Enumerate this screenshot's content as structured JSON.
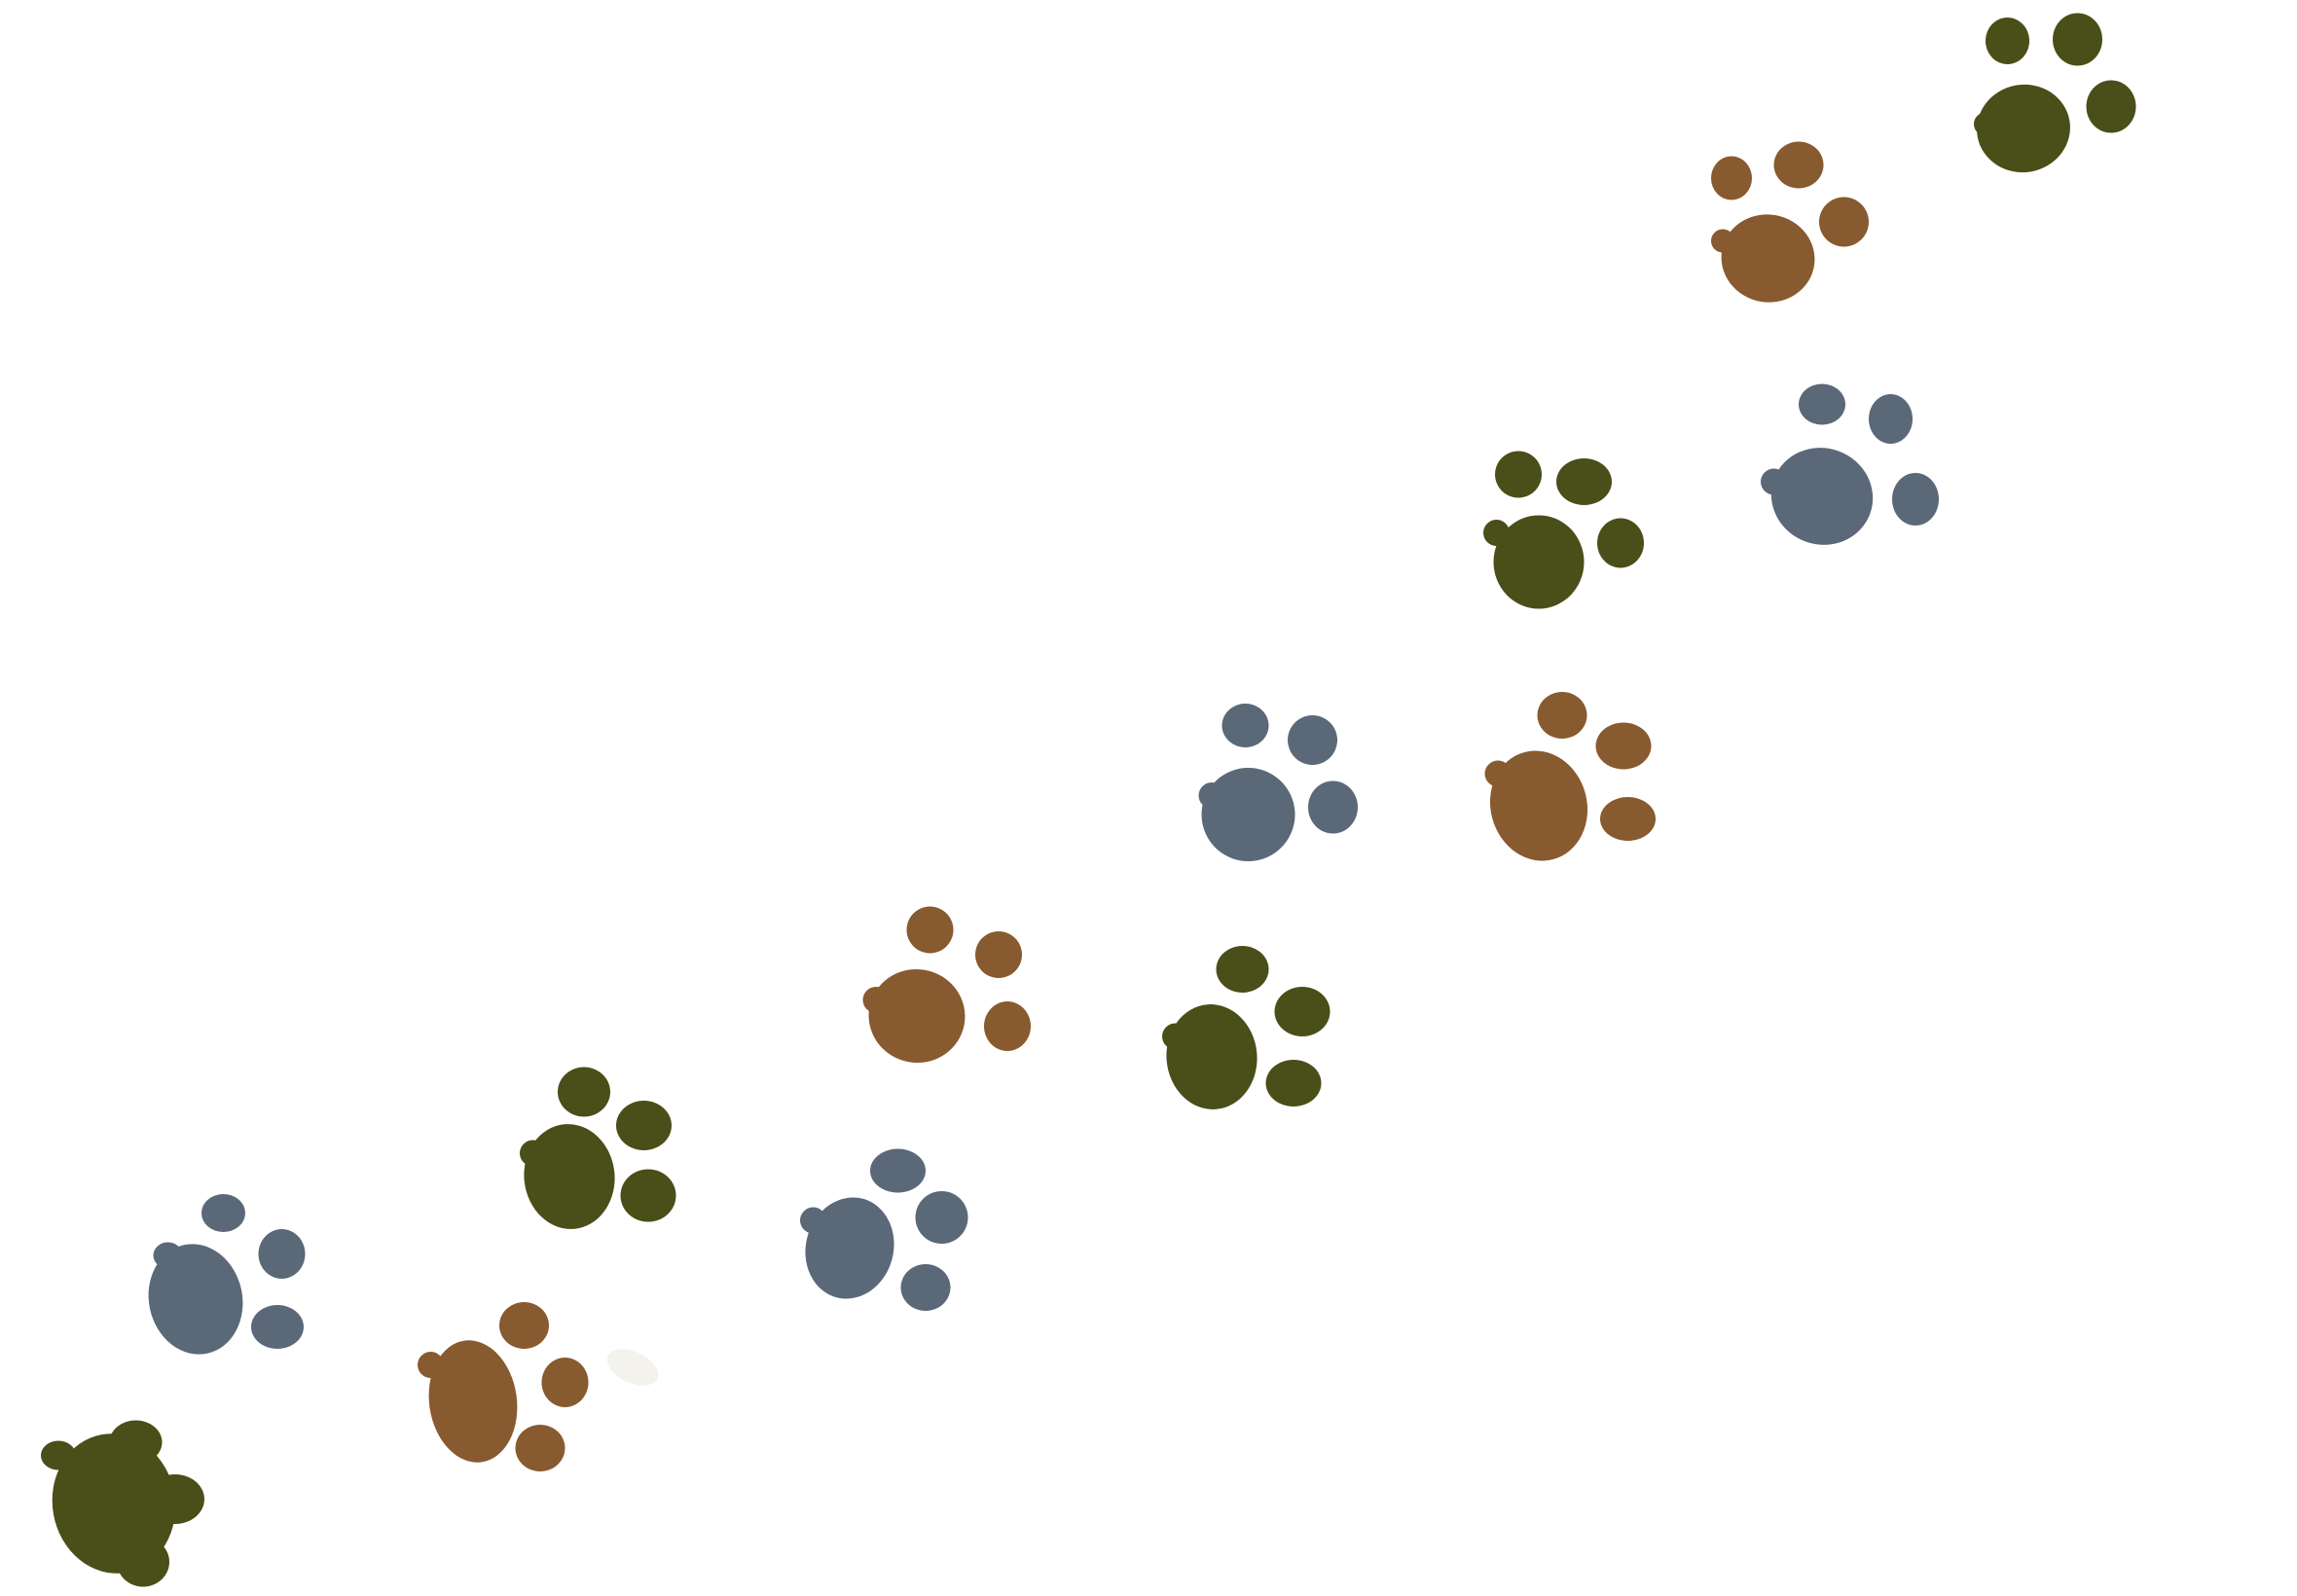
{
  "background_color": "#ffffff",
  "palette": {
    "olive": "#4a4e18",
    "brown": "#885a2f",
    "slate": "#5b6878"
  },
  "paw_prints": [
    {
      "name": "paw-print-olive-1",
      "color": "olive"
    },
    {
      "name": "paw-print-slate-1",
      "color": "slate"
    },
    {
      "name": "paw-print-brown-1",
      "color": "brown"
    },
    {
      "name": "paw-print-olive-2",
      "color": "olive"
    },
    {
      "name": "paw-print-slate-2",
      "color": "slate"
    },
    {
      "name": "paw-print-brown-2",
      "color": "brown"
    },
    {
      "name": "paw-print-olive-3",
      "color": "olive"
    },
    {
      "name": "paw-print-slate-3",
      "color": "slate"
    },
    {
      "name": "paw-print-brown-3",
      "color": "brown"
    },
    {
      "name": "paw-print-olive-4",
      "color": "olive"
    },
    {
      "name": "paw-print-slate-4",
      "color": "slate"
    },
    {
      "name": "paw-print-brown-4",
      "color": "brown"
    },
    {
      "name": "paw-print-olive-5",
      "color": "olive"
    }
  ]
}
